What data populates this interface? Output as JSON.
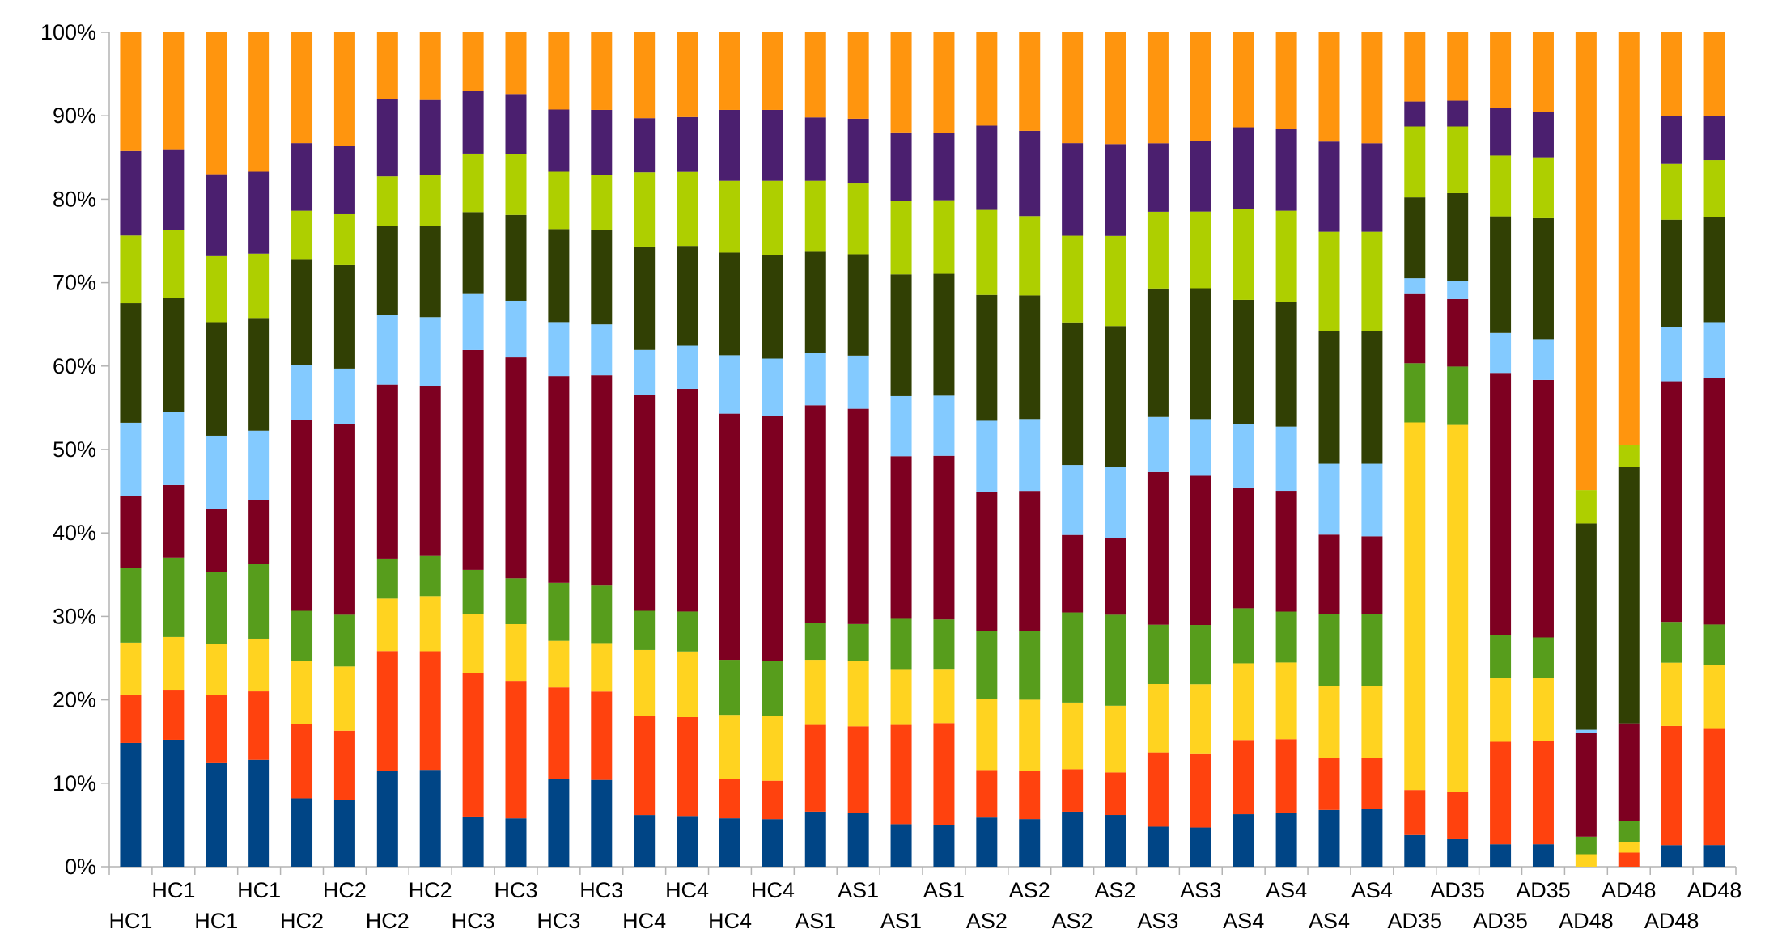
{
  "chart_data": {
    "type": "bar",
    "stacked": true,
    "normalized": true,
    "title": "",
    "xlabel": "",
    "ylabel": "",
    "ylim": [
      0,
      100
    ],
    "yticks": [
      "0%",
      "10%",
      "20%",
      "30%",
      "40%",
      "50%",
      "60%",
      "70%",
      "80%",
      "90%",
      "100%"
    ],
    "grid": false,
    "legend": "none",
    "categories": [
      "HC1",
      "HC1",
      "HC1",
      "HC1",
      "HC2",
      "HC2",
      "HC2",
      "HC2",
      "HC3",
      "HC3",
      "HC3",
      "HC3",
      "HC4",
      "HC4",
      "HC4",
      "HC4",
      "AS1",
      "AS1",
      "AS1",
      "AS1",
      "AS2",
      "AS2",
      "AS2",
      "AS2",
      "AS3",
      "AS3",
      "AS4",
      "AS4",
      "AS4",
      "AS4",
      "AD35",
      "AD35",
      "AD35",
      "AD35",
      "AD48",
      "AD48",
      "AD48",
      "AD48"
    ],
    "series": [
      {
        "color": "#004586",
        "values": [
          14.8,
          15.2,
          12.4,
          12.8,
          8.2,
          8.0,
          11.5,
          11.6,
          6.0,
          5.8,
          10.6,
          10.4,
          6.2,
          6.1,
          5.8,
          5.7,
          6.6,
          6.5,
          5.1,
          5.0,
          5.9,
          5.7,
          6.6,
          6.2,
          4.8,
          4.7,
          6.3,
          6.5,
          6.8,
          6.9,
          3.8,
          3.3,
          2.7,
          2.7,
          0.0,
          0.0,
          2.6,
          2.6
        ]
      },
      {
        "color": "#ff420e",
        "values": [
          5.8,
          5.9,
          8.2,
          8.2,
          8.9,
          8.3,
          14.4,
          14.2,
          17.2,
          16.5,
          11.0,
          10.6,
          11.9,
          11.9,
          4.7,
          4.6,
          10.4,
          10.4,
          11.9,
          12.2,
          5.7,
          5.8,
          5.1,
          5.1,
          8.9,
          8.9,
          8.9,
          8.8,
          6.2,
          6.1,
          5.4,
          5.7,
          12.3,
          12.4,
          0.0,
          1.7,
          14.3,
          13.9
        ]
      },
      {
        "color": "#ffd320",
        "values": [
          6.2,
          6.4,
          6.1,
          6.3,
          7.6,
          7.7,
          6.3,
          6.6,
          7.0,
          6.8,
          5.6,
          5.8,
          7.9,
          7.9,
          7.7,
          7.8,
          7.8,
          7.9,
          6.6,
          6.4,
          8.5,
          8.5,
          8.0,
          8.0,
          8.2,
          8.3,
          9.2,
          9.2,
          8.7,
          8.7,
          44.1,
          44.0,
          7.7,
          7.5,
          1.5,
          1.3,
          7.6,
          7.7
        ]
      },
      {
        "color": "#579d1c",
        "values": [
          8.9,
          9.5,
          8.6,
          9.0,
          6.0,
          6.2,
          4.8,
          4.8,
          5.3,
          5.5,
          7.0,
          6.9,
          4.7,
          4.8,
          6.6,
          6.6,
          4.4,
          4.4,
          6.2,
          6.0,
          8.2,
          8.2,
          10.8,
          10.9,
          7.1,
          7.1,
          6.6,
          6.1,
          8.6,
          8.6,
          7.1,
          7.0,
          5.1,
          4.9,
          2.1,
          2.5,
          4.9,
          4.8
        ]
      },
      {
        "color": "#7e0021",
        "values": [
          8.6,
          8.7,
          7.5,
          7.6,
          22.9,
          22.9,
          20.9,
          20.3,
          26.3,
          26.5,
          24.9,
          25.2,
          25.9,
          26.8,
          29.5,
          29.3,
          26.1,
          25.9,
          19.4,
          19.6,
          16.7,
          16.8,
          9.3,
          9.2,
          18.3,
          17.9,
          14.5,
          14.5,
          9.5,
          9.3,
          8.3,
          8.1,
          31.5,
          30.9,
          12.4,
          11.7,
          28.9,
          29.5
        ]
      },
      {
        "color": "#83caff",
        "values": [
          8.8,
          8.8,
          8.8,
          8.3,
          6.6,
          6.6,
          8.4,
          8.3,
          6.7,
          6.8,
          6.5,
          6.1,
          5.4,
          5.2,
          7.0,
          6.9,
          6.3,
          6.4,
          7.2,
          7.2,
          8.5,
          8.6,
          8.4,
          8.5,
          6.6,
          6.8,
          7.6,
          7.7,
          8.5,
          8.7,
          1.9,
          2.2,
          4.8,
          4.9,
          0.4,
          0.0,
          6.5,
          6.7
        ]
      },
      {
        "color": "#314004",
        "values": [
          14.3,
          13.6,
          13.6,
          13.5,
          12.7,
          12.4,
          10.6,
          10.9,
          9.8,
          10.3,
          11.2,
          11.3,
          12.4,
          12.0,
          12.3,
          12.4,
          12.1,
          12.2,
          14.6,
          14.6,
          15.1,
          14.8,
          17.1,
          16.9,
          15.4,
          15.7,
          14.9,
          15.0,
          15.9,
          15.9,
          9.7,
          10.5,
          14.0,
          14.5,
          24.7,
          30.8,
          12.9,
          12.6
        ]
      },
      {
        "color": "#aecf00",
        "values": [
          8.1,
          8.1,
          7.9,
          7.7,
          5.8,
          6.1,
          6.0,
          6.1,
          7.0,
          7.3,
          6.9,
          6.6,
          8.9,
          8.9,
          8.6,
          8.9,
          8.5,
          8.6,
          8.8,
          8.8,
          10.2,
          9.5,
          10.4,
          10.8,
          9.2,
          9.2,
          10.9,
          10.9,
          11.9,
          11.9,
          8.5,
          8.0,
          7.3,
          7.3,
          4.0,
          2.6,
          6.7,
          6.8
        ]
      },
      {
        "color": "#4b1f6f",
        "values": [
          10.1,
          9.7,
          9.8,
          9.8,
          8.1,
          8.2,
          9.3,
          9.0,
          7.5,
          7.2,
          7.5,
          7.8,
          6.5,
          6.6,
          8.5,
          8.5,
          7.6,
          7.7,
          8.2,
          8.0,
          10.1,
          10.2,
          11.1,
          11.0,
          8.2,
          8.5,
          9.8,
          9.8,
          10.8,
          10.6,
          3.0,
          3.1,
          5.7,
          5.4,
          0.0,
          0.0,
          5.8,
          5.3
        ]
      },
      {
        "color": "#ff950e",
        "values": [
          14.2,
          14.0,
          17.0,
          16.7,
          13.3,
          13.6,
          8.0,
          8.1,
          7.0,
          7.4,
          9.3,
          9.3,
          10.3,
          10.2,
          9.3,
          9.3,
          10.2,
          10.4,
          12.0,
          12.1,
          11.2,
          11.8,
          13.3,
          13.4,
          13.3,
          13.0,
          11.4,
          11.6,
          13.1,
          13.3,
          8.3,
          8.2,
          9.1,
          9.6,
          54.8,
          49.5,
          10.0,
          10.0
        ]
      }
    ]
  }
}
